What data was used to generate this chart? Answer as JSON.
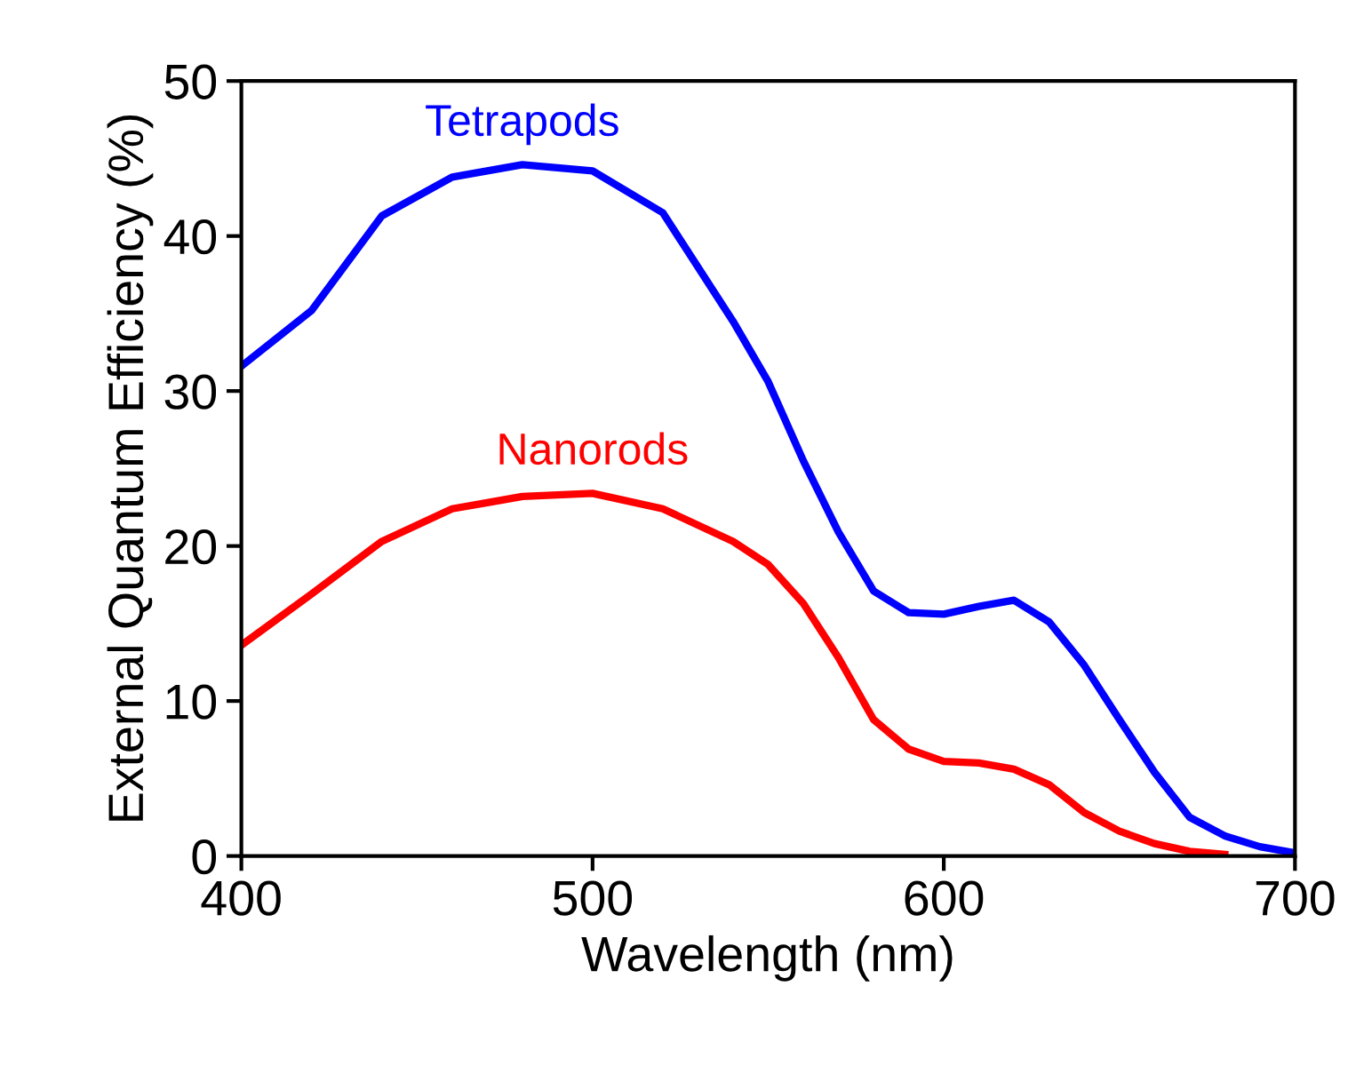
{
  "chart_data": {
    "type": "line",
    "xlabel": "Wavelength (nm)",
    "ylabel": "External Quantum Efficiency (%)",
    "xlim": [
      400,
      700
    ],
    "xticks": [
      400,
      500,
      600,
      700
    ],
    "ylim": [
      0,
      50
    ],
    "yticks": [
      0,
      10,
      20,
      30,
      40,
      50
    ],
    "grid": false,
    "legend": false,
    "series": [
      {
        "name": "Tetrapods",
        "color": "#0000ff",
        "x": [
          400,
          420,
          440,
          460,
          480,
          500,
          520,
          540,
          550,
          560,
          570,
          580,
          590,
          600,
          610,
          620,
          630,
          640,
          650,
          660,
          670,
          680,
          690,
          700
        ],
        "values": [
          31.6,
          35.2,
          41.3,
          43.8,
          44.6,
          44.2,
          41.5,
          34.5,
          30.6,
          25.5,
          20.9,
          17.1,
          15.7,
          15.6,
          16.1,
          16.5,
          15.1,
          12.3,
          8.8,
          5.4,
          2.5,
          1.3,
          0.6,
          0.2
        ]
      },
      {
        "name": "Nanorods",
        "color": "#ff0000",
        "x": [
          400,
          420,
          440,
          460,
          470,
          480,
          500,
          520,
          540,
          550,
          560,
          570,
          580,
          590,
          600,
          610,
          620,
          630,
          640,
          650,
          660,
          670,
          680
        ],
        "values": [
          13.6,
          16.9,
          20.3,
          22.4,
          22.8,
          23.2,
          23.4,
          22.4,
          20.3,
          18.8,
          16.3,
          12.8,
          8.8,
          6.9,
          6.1,
          6.0,
          5.6,
          4.6,
          2.8,
          1.6,
          0.8,
          0.3,
          0.1
        ]
      }
    ]
  }
}
